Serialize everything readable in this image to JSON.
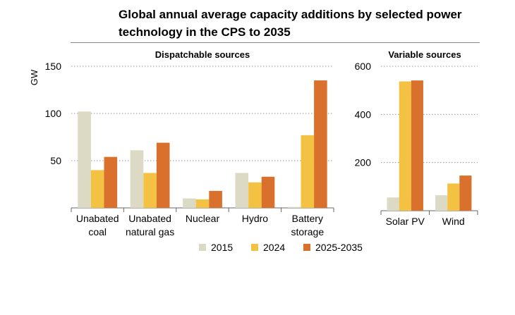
{
  "title": "Global annual average capacity additions by selected power technology in the CPS to 2035",
  "legend": [
    {
      "name": "2015",
      "color": "#dcd9c4"
    },
    {
      "name": "2024",
      "color": "#f4c242"
    },
    {
      "name": "2025-2035",
      "color": "#d9712c"
    }
  ],
  "chart_data": [
    {
      "type": "bar",
      "title": "Dispatchable sources",
      "ylabel": "GW",
      "ylim": [
        0,
        150
      ],
      "yticks": [
        "50",
        "100",
        "150"
      ],
      "grid": true,
      "categories": [
        [
          "Unabated",
          "coal"
        ],
        [
          "Unabated",
          "natural gas"
        ],
        [
          "Nuclear"
        ],
        [
          "Hydro"
        ],
        [
          "Battery",
          "storage"
        ]
      ],
      "series": [
        {
          "name": "2015",
          "values": [
            102,
            61,
            10,
            37,
            1
          ]
        },
        {
          "name": "2024",
          "values": [
            40,
            37,
            9,
            27,
            77
          ]
        },
        {
          "name": "2025-2035",
          "values": [
            54,
            69,
            18,
            33,
            135
          ]
        }
      ]
    },
    {
      "type": "bar",
      "title": "Variable sources",
      "ylim": [
        0,
        600
      ],
      "yticks": [
        "200",
        "400",
        "600"
      ],
      "grid": true,
      "categories": [
        [
          "Solar PV"
        ],
        [
          "Wind"
        ]
      ],
      "series": [
        {
          "name": "2015",
          "values": [
            55,
            64
          ]
        },
        {
          "name": "2024",
          "values": [
            537,
            113
          ]
        },
        {
          "name": "2025-2035",
          "values": [
            541,
            146
          ]
        }
      ]
    }
  ]
}
